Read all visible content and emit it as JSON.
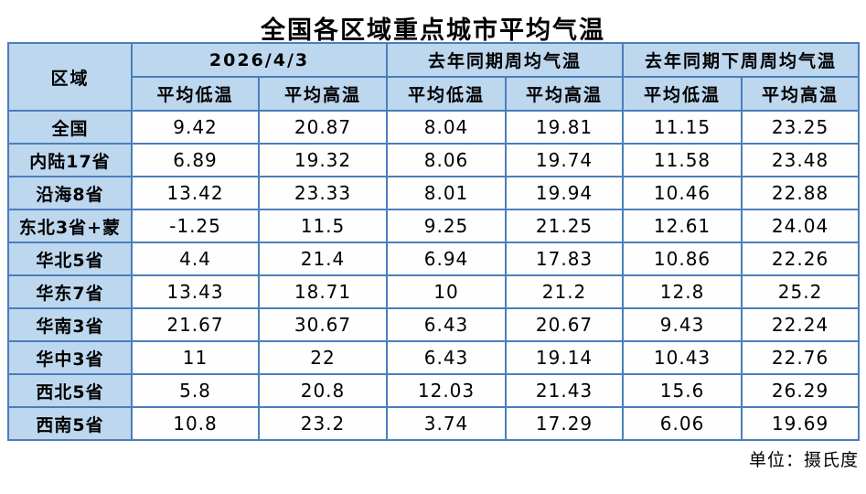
{
  "title": "全国各区域重点城市平均气温",
  "footer": {
    "unit_label": "单位：摄氏度"
  },
  "colors": {
    "header_bg": "#BDD7EE",
    "border": "#4A7EBB",
    "cell_bg": "#FEFEFE",
    "text": "#000000"
  },
  "table": {
    "corner_header": "区域",
    "group_headers": [
      "2026/4/3",
      "去年同期周均气温",
      "去年同期下周周均气温"
    ],
    "sub_headers": [
      "平均低温",
      "平均高温",
      "平均低温",
      "平均高温",
      "平均低温",
      "平均高温"
    ],
    "rows": [
      {
        "region": "全国",
        "values": [
          "9.42",
          "20.87",
          "8.04",
          "19.81",
          "11.15",
          "23.25"
        ]
      },
      {
        "region": "内陆17省",
        "values": [
          "6.89",
          "19.32",
          "8.06",
          "19.74",
          "11.58",
          "23.48"
        ]
      },
      {
        "region": "沿海8省",
        "values": [
          "13.42",
          "23.33",
          "8.01",
          "19.94",
          "10.46",
          "22.88"
        ]
      },
      {
        "region": "东北3省+蒙",
        "values": [
          "-1.25",
          "11.5",
          "9.25",
          "21.25",
          "12.61",
          "24.04"
        ]
      },
      {
        "region": "华北5省",
        "values": [
          "4.4",
          "21.4",
          "6.94",
          "17.83",
          "10.86",
          "22.26"
        ]
      },
      {
        "region": "华东7省",
        "values": [
          "13.43",
          "18.71",
          "10",
          "21.2",
          "12.8",
          "25.2"
        ]
      },
      {
        "region": "华南3省",
        "values": [
          "21.67",
          "30.67",
          "6.43",
          "20.67",
          "9.43",
          "22.24"
        ]
      },
      {
        "region": "华中3省",
        "values": [
          "11",
          "22",
          "6.43",
          "19.14",
          "10.43",
          "22.76"
        ]
      },
      {
        "region": "西北5省",
        "values": [
          "5.8",
          "20.8",
          "12.03",
          "21.43",
          "15.6",
          "26.29"
        ]
      },
      {
        "region": "西南5省",
        "values": [
          "10.8",
          "23.2",
          "3.74",
          "17.29",
          "6.06",
          "19.69"
        ]
      }
    ]
  },
  "chart_data": {
    "type": "table",
    "title": "全国各区域重点城市平均气温",
    "unit": "摄氏度",
    "column_groups": [
      "2026/4/3",
      "去年同期周均气温",
      "去年同期下周周均气温"
    ],
    "columns": [
      "区域",
      "2026/4/3 平均低温",
      "2026/4/3 平均高温",
      "去年同期周均气温 平均低温",
      "去年同期周均气温 平均高温",
      "去年同期下周周均气温 平均低温",
      "去年同期下周周均气温 平均高温"
    ],
    "rows": [
      [
        "全国",
        9.42,
        20.87,
        8.04,
        19.81,
        11.15,
        23.25
      ],
      [
        "内陆17省",
        6.89,
        19.32,
        8.06,
        19.74,
        11.58,
        23.48
      ],
      [
        "沿海8省",
        13.42,
        23.33,
        8.01,
        19.94,
        10.46,
        22.88
      ],
      [
        "东北3省+蒙",
        -1.25,
        11.5,
        9.25,
        21.25,
        12.61,
        24.04
      ],
      [
        "华北5省",
        4.4,
        21.4,
        6.94,
        17.83,
        10.86,
        22.26
      ],
      [
        "华东7省",
        13.43,
        18.71,
        10,
        21.2,
        12.8,
        25.2
      ],
      [
        "华南3省",
        21.67,
        30.67,
        6.43,
        20.67,
        9.43,
        22.24
      ],
      [
        "华中3省",
        11,
        22,
        6.43,
        19.14,
        10.43,
        22.76
      ],
      [
        "西北5省",
        5.8,
        20.8,
        12.03,
        21.43,
        15.6,
        26.29
      ],
      [
        "西南5省",
        10.8,
        23.2,
        3.74,
        17.29,
        6.06,
        19.69
      ]
    ]
  }
}
